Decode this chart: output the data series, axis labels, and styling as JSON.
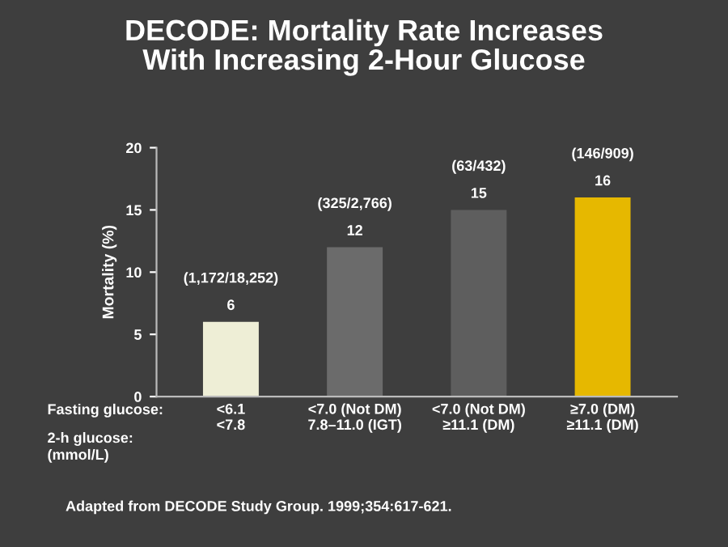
{
  "chart_data": {
    "type": "bar",
    "title": "DECODE: Mortality Rate Increases\nWith Increasing 2-Hour Glucose",
    "ylabel": "Mortality (%)",
    "categories": [
      "<6.1\n<7.8",
      "<7.0 (Not DM)\n7.8–11.0 (IGT)",
      "<7.0 (Not DM)\n≥11.1 (DM)",
      "≥7.0 (DM)\n≥11.1 (DM)"
    ],
    "values": [
      6,
      12,
      15,
      16
    ],
    "colors": [
      "#eeeed6",
      "#6b6b6b",
      "#5e5e5e",
      "#e6b800"
    ],
    "value_labels": [
      "(1,172/18,252)\n\n6",
      "(325/2,766)\n\n12",
      "(63/432)\n\n15",
      "(146/909)\n\n16"
    ],
    "ylim": [
      0,
      20
    ],
    "yticks": [
      0,
      5,
      10,
      15,
      20
    ],
    "annotations": [
      "Fasting glucose:",
      "2-h glucose:\n(mmol/L)",
      "Adapted from DECODE Study Group. 1999;354:617-621."
    ]
  }
}
